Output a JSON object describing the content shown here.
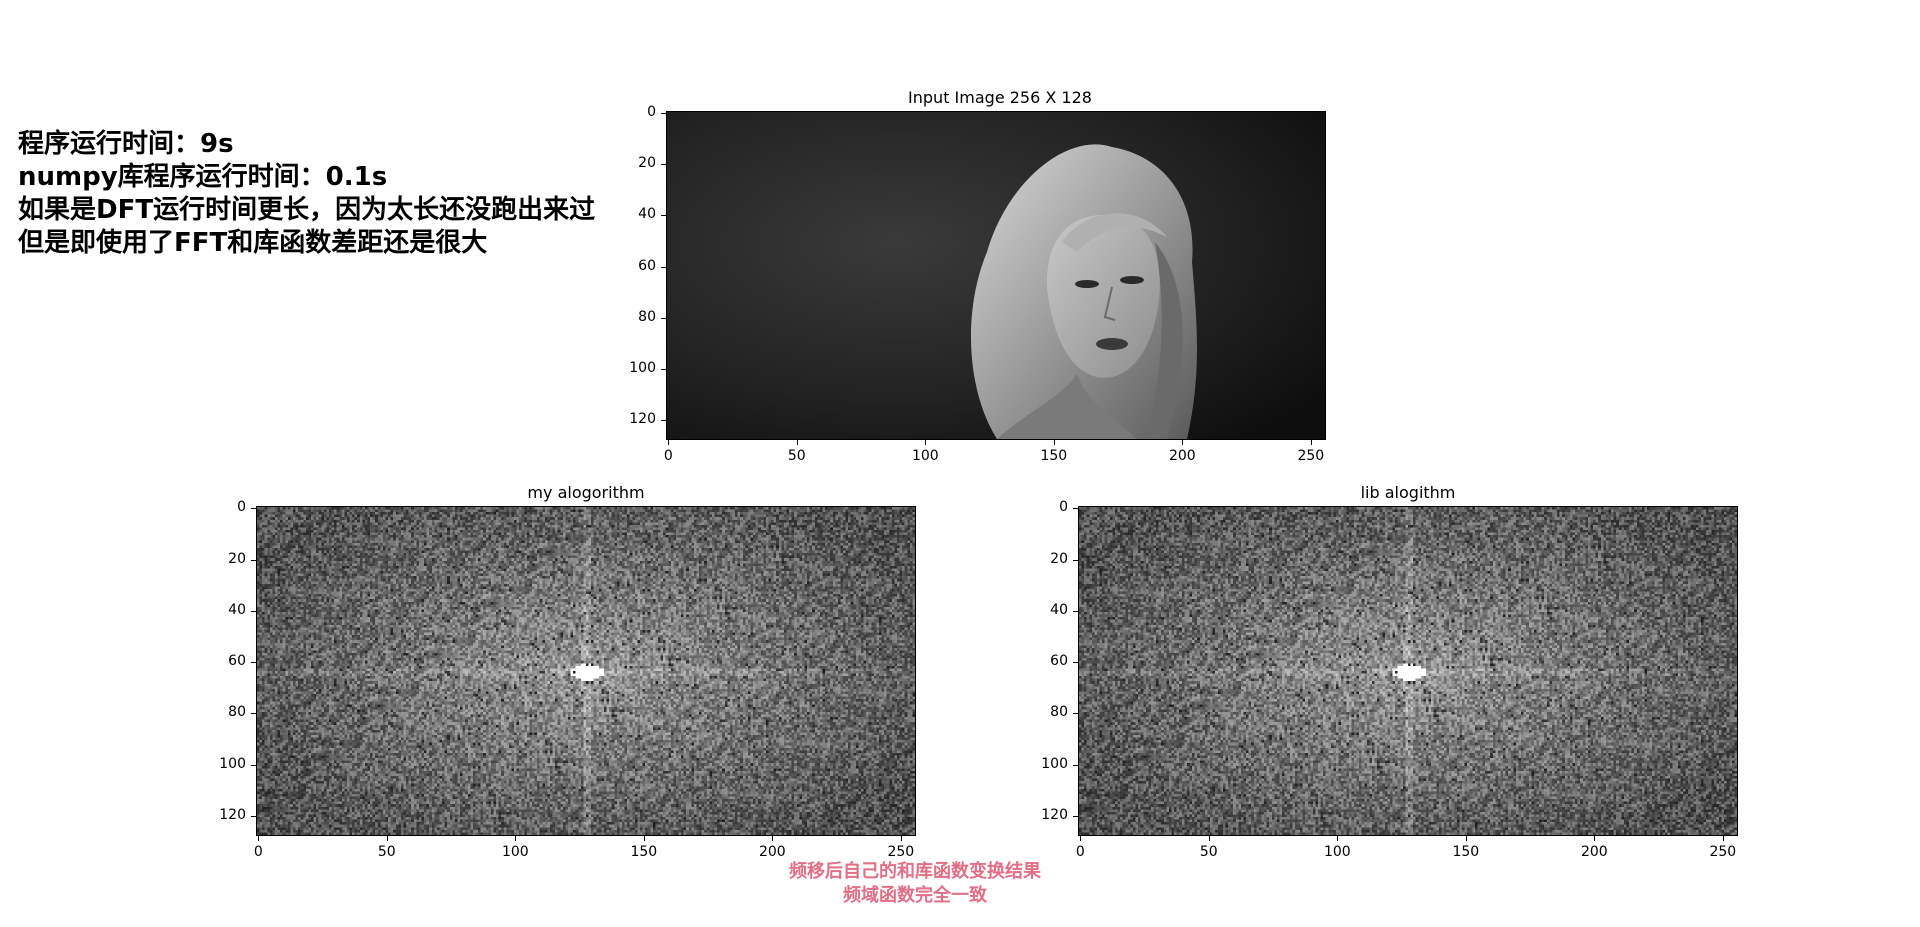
{
  "notes": [
    "程序运行时间：9s",
    "numpy库程序运行时间：0.1s",
    "如果是DFT运行时间更长，因为太长还没跑出来过",
    "但是即使用了FFT和库函数差距还是很大"
  ],
  "panels": {
    "input": {
      "title": "Input Image 256 X 128",
      "yticks": [
        "0",
        "20",
        "40",
        "60",
        "80",
        "100",
        "120"
      ],
      "xticks": [
        "0",
        "50",
        "100",
        "150",
        "200",
        "250"
      ]
    },
    "mine": {
      "title": "my alogorithm",
      "yticks": [
        "0",
        "20",
        "40",
        "60",
        "80",
        "100",
        "120"
      ],
      "xticks": [
        "0",
        "50",
        "100",
        "150",
        "200",
        "250"
      ]
    },
    "lib": {
      "title": "lib alogithm",
      "yticks": [
        "0",
        "20",
        "40",
        "60",
        "80",
        "100",
        "120"
      ],
      "xticks": [
        "0",
        "50",
        "100",
        "150",
        "200",
        "250"
      ]
    }
  },
  "caption": {
    "line1": "频移后自己的和库函数变换结果",
    "line2": "频域函数完全一致",
    "color": "#e36f86"
  }
}
